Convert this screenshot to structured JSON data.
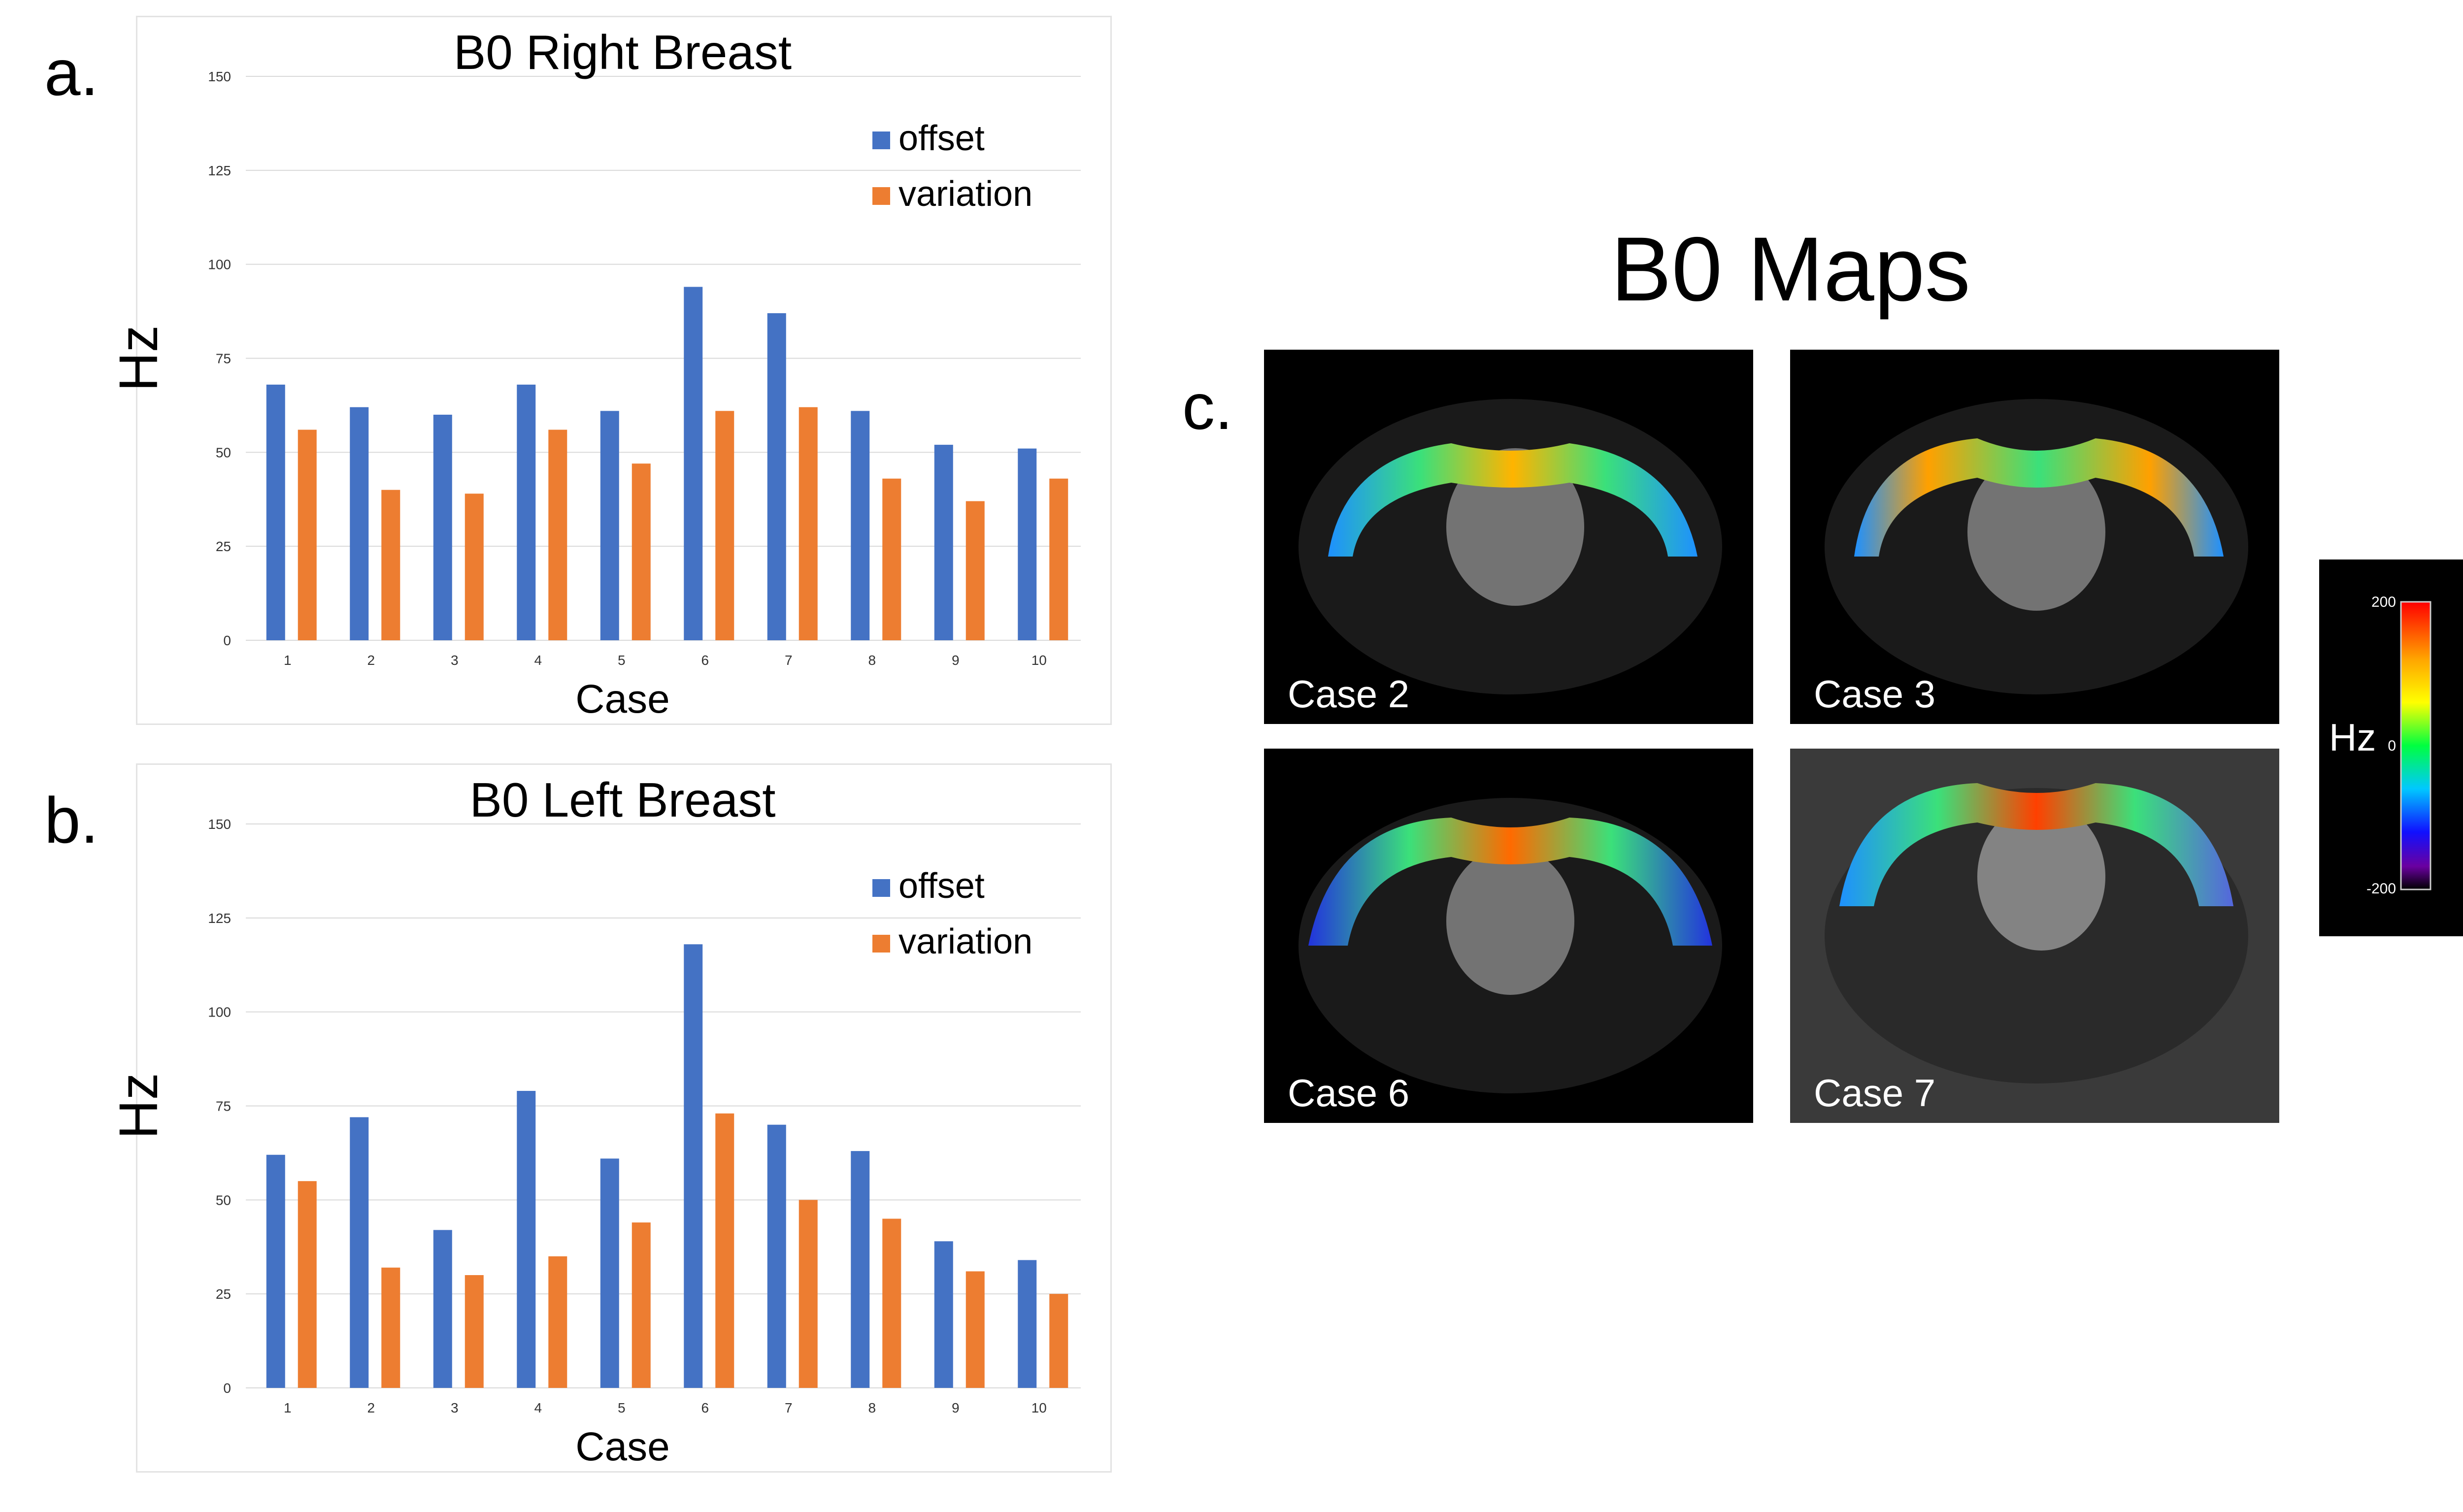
{
  "panels": {
    "a": "a.",
    "b": "b.",
    "c": "c."
  },
  "chart_data": [
    {
      "type": "bar",
      "title": "B0 Right Breast",
      "xlabel": "Case",
      "ylabel": "Hz",
      "ylim": [
        0,
        150
      ],
      "yticks": [
        0,
        25,
        50,
        75,
        100,
        125,
        150
      ],
      "categories": [
        "1",
        "2",
        "3",
        "4",
        "5",
        "6",
        "7",
        "8",
        "9",
        "10"
      ],
      "legend_position": "top-right",
      "series": [
        {
          "name": "offset",
          "color": "#4472C4",
          "values": [
            68,
            62,
            60,
            68,
            61,
            94,
            87,
            61,
            52,
            51
          ]
        },
        {
          "name": "variation",
          "color": "#ED7D31",
          "values": [
            56,
            40,
            39,
            56,
            47,
            61,
            62,
            43,
            37,
            43
          ]
        }
      ]
    },
    {
      "type": "bar",
      "title": "B0 Left Breast",
      "xlabel": "Case",
      "ylabel": "Hz",
      "ylim": [
        0,
        150
      ],
      "yticks": [
        0,
        25,
        50,
        75,
        100,
        125,
        150
      ],
      "categories": [
        "1",
        "2",
        "3",
        "4",
        "5",
        "6",
        "7",
        "8",
        "9",
        "10"
      ],
      "legend_position": "top-right",
      "series": [
        {
          "name": "offset",
          "color": "#4472C4",
          "values": [
            62,
            72,
            42,
            79,
            61,
            118,
            70,
            63,
            39,
            34
          ]
        },
        {
          "name": "variation",
          "color": "#ED7D31",
          "values": [
            55,
            32,
            30,
            35,
            44,
            73,
            50,
            45,
            31,
            25
          ]
        }
      ]
    }
  ],
  "maps": {
    "title": "B0 Maps",
    "cases": [
      {
        "label": "Case 2",
        "background": "dark"
      },
      {
        "label": "Case 3",
        "background": "dark"
      },
      {
        "label": "Case 6",
        "background": "dark"
      },
      {
        "label": "Case 7",
        "background": "gray"
      }
    ],
    "colorbar": {
      "unit": "Hz",
      "max": "200",
      "mid": "0",
      "min": "-200"
    }
  }
}
